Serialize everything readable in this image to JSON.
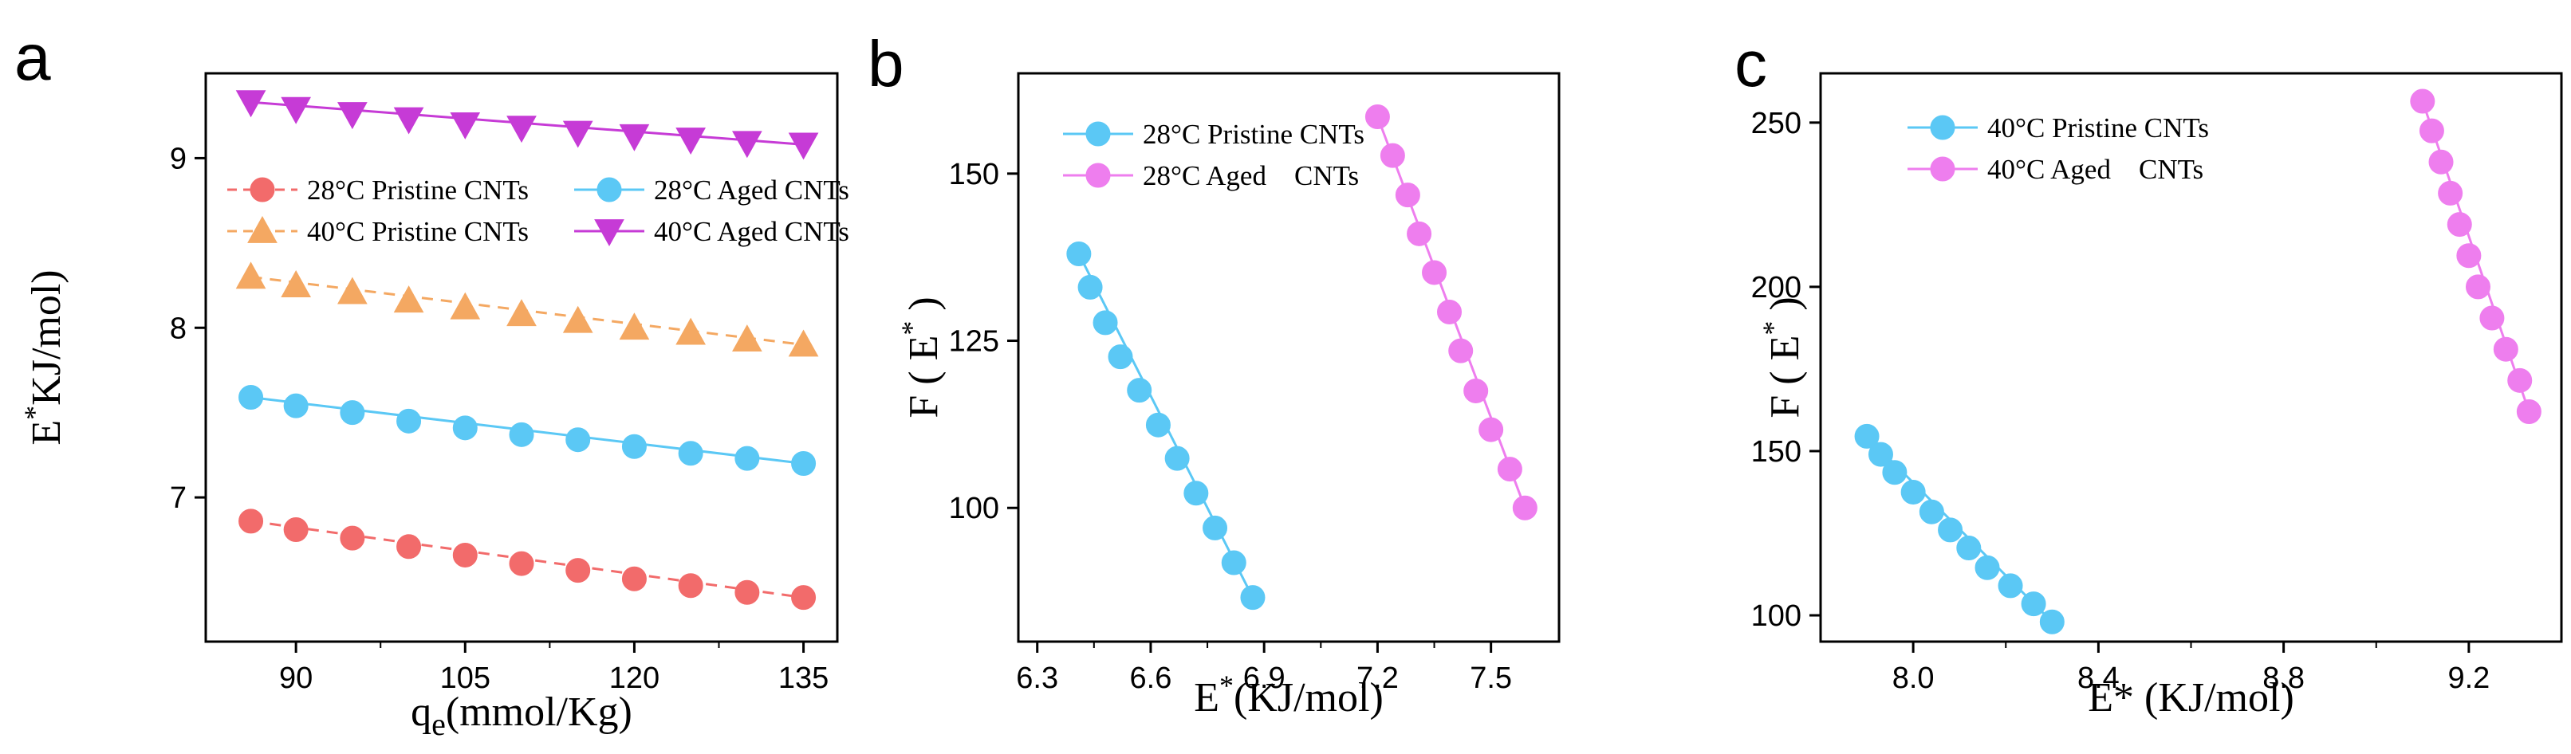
{
  "colors": {
    "pristine28": "#F26B6B",
    "pristine28_line": "#F26B6B",
    "aged28": "#5BC8F5",
    "aged28_line": "#5BC8F5",
    "pristine40": "#F4A862",
    "pristine40_line": "#F4A862",
    "aged40": "#C63BD6",
    "aged40_line": "#C63BD6",
    "violet": "#EE7EEE",
    "axis": "#000000"
  },
  "chart_data": [
    {
      "panel": "a",
      "type": "line",
      "xlabel_main": "q",
      "xlabel_sub": "e",
      "xlabel_rest": "(mmol/Kg)",
      "ylabel_main": "E",
      "ylabel_sup": "*",
      "ylabel_rest": "KJ/mol)",
      "xlim": [
        82,
        138
      ],
      "ylim": [
        6.15,
        9.5
      ],
      "xticks": [
        90,
        105,
        120,
        135
      ],
      "xtick_labels": [
        "90",
        "105",
        "120",
        "135"
      ],
      "yticks": [
        7,
        8,
        9
      ],
      "ytick_labels": [
        "7",
        "8",
        "9"
      ],
      "x": [
        86,
        90,
        95,
        100,
        105,
        110,
        115,
        120,
        125,
        130,
        135
      ],
      "series": [
        {
          "name": "28°C Pristine CNTs",
          "marker": "circle",
          "color_key": "pristine28",
          "dashed": true,
          "values": [
            6.86,
            6.81,
            6.76,
            6.71,
            6.66,
            6.61,
            6.57,
            6.52,
            6.48,
            6.44,
            6.41
          ]
        },
        {
          "name": "28°C Aged CNTs",
          "marker": "circle",
          "color_key": "aged28",
          "dashed": false,
          "values": [
            7.59,
            7.54,
            7.5,
            7.45,
            7.41,
            7.37,
            7.34,
            7.3,
            7.26,
            7.23,
            7.2
          ]
        },
        {
          "name": "40°C Pristine CNTs",
          "marker": "triangle-up",
          "color_key": "pristine40",
          "dashed": true,
          "values": [
            8.3,
            8.25,
            8.21,
            8.16,
            8.12,
            8.08,
            8.04,
            8.0,
            7.97,
            7.93,
            7.9
          ]
        },
        {
          "name": "40°C Aged CNTs",
          "marker": "triangle-down",
          "color_key": "aged40",
          "dashed": false,
          "values": [
            9.33,
            9.29,
            9.26,
            9.23,
            9.2,
            9.18,
            9.15,
            9.13,
            9.11,
            9.09,
            9.08
          ]
        }
      ],
      "legend_position": "middle-left, two columns"
    },
    {
      "panel": "b",
      "type": "line",
      "xlabel_main": "E",
      "xlabel_sup": "*",
      "xlabel_rest": "(KJ/mol)",
      "ylabel_main": "F ( E",
      "ylabel_sup": "*",
      "ylabel_rest": " )",
      "xlim": [
        6.25,
        7.68
      ],
      "ylim": [
        80,
        165
      ],
      "xticks": [
        6.3,
        6.6,
        6.9,
        7.2,
        7.5
      ],
      "xtick_labels": [
        "6.3",
        "6.6",
        "6.9",
        "7.2",
        "7.5"
      ],
      "yticks": [
        100,
        125,
        150
      ],
      "ytick_labels": [
        "100",
        "125",
        "150"
      ],
      "series": [
        {
          "name": "28°C Pristine CNTs",
          "marker": "circle",
          "color_key": "aged28",
          "dashed": false,
          "x": [
            6.41,
            6.44,
            6.48,
            6.52,
            6.57,
            6.62,
            6.67,
            6.72,
            6.77,
            6.82,
            6.87
          ],
          "values": [
            138,
            133,
            127.7,
            122.6,
            117.6,
            112.4,
            107.4,
            102.2,
            97,
            91.8,
            86.6
          ]
        },
        {
          "name": "28°C Aged    CNTs",
          "marker": "circle",
          "color_key": "violet",
          "dashed": false,
          "x": [
            7.2,
            7.24,
            7.28,
            7.31,
            7.35,
            7.39,
            7.42,
            7.46,
            7.5,
            7.55,
            7.59
          ],
          "values": [
            158.5,
            152.7,
            146.8,
            141,
            135.2,
            129.3,
            123.5,
            117.5,
            111.7,
            105.8,
            100
          ]
        }
      ],
      "legend_position": "top-left"
    },
    {
      "panel": "c",
      "type": "line",
      "xlabel_main": "E* (KJ/mol)",
      "ylabel_main": "F ( E",
      "ylabel_sup": "*",
      "ylabel_rest": " )",
      "xlim": [
        7.8,
        9.4
      ],
      "ylim": [
        92,
        265
      ],
      "xticks": [
        8.0,
        8.4,
        8.8,
        9.2
      ],
      "xtick_labels": [
        "8.0",
        "8.4",
        "8.8",
        "9.2"
      ],
      "yticks": [
        100,
        150,
        200,
        250
      ],
      "ytick_labels": [
        "100",
        "150",
        "200",
        "250"
      ],
      "series": [
        {
          "name": "40°C Pristine CNTs",
          "marker": "circle",
          "color_key": "aged28",
          "dashed": false,
          "x": [
            7.9,
            7.93,
            7.96,
            8.0,
            8.04,
            8.08,
            8.12,
            8.16,
            8.21,
            8.26,
            8.3
          ],
          "values": [
            154.5,
            149,
            143.5,
            137.5,
            131.5,
            126,
            120.5,
            114.5,
            109,
            103.5,
            98
          ]
        },
        {
          "name": "40°C Aged    CNTs",
          "marker": "circle",
          "color_key": "violet",
          "dashed": false,
          "x": [
            9.1,
            9.12,
            9.14,
            9.16,
            9.18,
            9.2,
            9.22,
            9.25,
            9.28,
            9.31,
            9.33
          ],
          "values": [
            256.5,
            247.5,
            238,
            228.5,
            219,
            209.5,
            200,
            190.5,
            181,
            171.5,
            162
          ]
        }
      ],
      "legend_position": "top-left"
    }
  ]
}
